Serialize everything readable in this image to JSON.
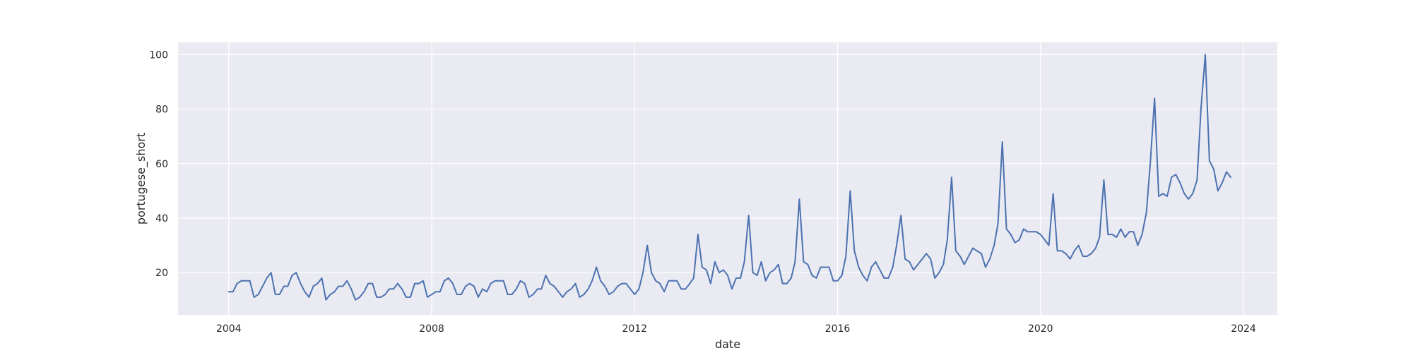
{
  "chart_data": {
    "type": "line",
    "xlabel": "date",
    "ylabel": "portugese_short",
    "grid": true,
    "colors": {
      "line": "#4c72b0",
      "plot_background": "#eaeaf2",
      "grid": "#ffffff"
    },
    "xlim": [
      "2003-01-01",
      "2024-09-01"
    ],
    "ylim": [
      4.5,
      104.5
    ],
    "x_ticks": [
      {
        "value": "2004-01-01",
        "label": "2004"
      },
      {
        "value": "2008-01-01",
        "label": "2008"
      },
      {
        "value": "2012-01-01",
        "label": "2012"
      },
      {
        "value": "2016-01-01",
        "label": "2016"
      },
      {
        "value": "2020-01-01",
        "label": "2020"
      },
      {
        "value": "2024-01-01",
        "label": "2024"
      }
    ],
    "y_ticks": [
      20,
      40,
      60,
      80,
      100
    ],
    "series": [
      {
        "x": [
          "2004-01",
          "2004-02",
          "2004-03",
          "2004-04",
          "2004-05",
          "2004-06",
          "2004-07",
          "2004-08",
          "2004-09",
          "2004-10",
          "2004-11",
          "2004-12",
          "2005-01",
          "2005-02",
          "2005-03",
          "2005-04",
          "2005-05",
          "2005-06",
          "2005-07",
          "2005-08",
          "2005-09",
          "2005-10",
          "2005-11",
          "2005-12",
          "2006-01",
          "2006-02",
          "2006-03",
          "2006-04",
          "2006-05",
          "2006-06",
          "2006-07",
          "2006-08",
          "2006-09",
          "2006-10",
          "2006-11",
          "2006-12",
          "2007-01",
          "2007-02",
          "2007-03",
          "2007-04",
          "2007-05",
          "2007-06",
          "2007-07",
          "2007-08",
          "2007-09",
          "2007-10",
          "2007-11",
          "2007-12",
          "2008-01",
          "2008-02",
          "2008-03",
          "2008-04",
          "2008-05",
          "2008-06",
          "2008-07",
          "2008-08",
          "2008-09",
          "2008-10",
          "2008-11",
          "2008-12",
          "2009-01",
          "2009-02",
          "2009-03",
          "2009-04",
          "2009-05",
          "2009-06",
          "2009-07",
          "2009-08",
          "2009-09",
          "2009-10",
          "2009-11",
          "2009-12",
          "2010-01",
          "2010-02",
          "2010-03",
          "2010-04",
          "2010-05",
          "2010-06",
          "2010-07",
          "2010-08",
          "2010-09",
          "2010-10",
          "2010-11",
          "2010-12",
          "2011-01",
          "2011-02",
          "2011-03",
          "2011-04",
          "2011-05",
          "2011-06",
          "2011-07",
          "2011-08",
          "2011-09",
          "2011-10",
          "2011-11",
          "2011-12",
          "2012-01",
          "2012-02",
          "2012-03",
          "2012-04",
          "2012-05",
          "2012-06",
          "2012-07",
          "2012-08",
          "2012-09",
          "2012-10",
          "2012-11",
          "2012-12",
          "2013-01",
          "2013-02",
          "2013-03",
          "2013-04",
          "2013-05",
          "2013-06",
          "2013-07",
          "2013-08",
          "2013-09",
          "2013-10",
          "2013-11",
          "2013-12",
          "2014-01",
          "2014-02",
          "2014-03",
          "2014-04",
          "2014-05",
          "2014-06",
          "2014-07",
          "2014-08",
          "2014-09",
          "2014-10",
          "2014-11",
          "2014-12",
          "2015-01",
          "2015-02",
          "2015-03",
          "2015-04",
          "2015-05",
          "2015-06",
          "2015-07",
          "2015-08",
          "2015-09",
          "2015-10",
          "2015-11",
          "2015-12",
          "2016-01",
          "2016-02",
          "2016-03",
          "2016-04",
          "2016-05",
          "2016-06",
          "2016-07",
          "2016-08",
          "2016-09",
          "2016-10",
          "2016-11",
          "2016-12",
          "2017-01",
          "2017-02",
          "2017-03",
          "2017-04",
          "2017-05",
          "2017-06",
          "2017-07",
          "2017-08",
          "2017-09",
          "2017-10",
          "2017-11",
          "2017-12",
          "2018-01",
          "2018-02",
          "2018-03",
          "2018-04",
          "2018-05",
          "2018-06",
          "2018-07",
          "2018-08",
          "2018-09",
          "2018-10",
          "2018-11",
          "2018-12",
          "2019-01",
          "2019-02",
          "2019-03",
          "2019-04",
          "2019-05",
          "2019-06",
          "2019-07",
          "2019-08",
          "2019-09",
          "2019-10",
          "2019-11",
          "2019-12",
          "2020-01",
          "2020-02",
          "2020-03",
          "2020-04",
          "2020-05",
          "2020-06",
          "2020-07",
          "2020-08",
          "2020-09",
          "2020-10",
          "2020-11",
          "2020-12",
          "2021-01",
          "2021-02",
          "2021-03",
          "2021-04",
          "2021-05",
          "2021-06",
          "2021-07",
          "2021-08",
          "2021-09",
          "2021-10",
          "2021-11",
          "2021-12",
          "2022-01",
          "2022-02",
          "2022-03",
          "2022-04",
          "2022-05",
          "2022-06",
          "2022-07",
          "2022-08",
          "2022-09",
          "2022-10",
          "2022-11",
          "2022-12",
          "2023-01",
          "2023-02",
          "2023-03",
          "2023-04",
          "2023-05",
          "2023-06",
          "2023-07",
          "2023-08",
          "2023-09",
          "2023-10"
        ],
        "y": [
          13,
          13,
          16,
          17,
          17,
          17,
          11,
          12,
          15,
          18,
          20,
          12,
          12,
          15,
          15,
          19,
          20,
          16,
          13,
          11,
          15,
          16,
          18,
          10,
          12,
          13,
          15,
          15,
          17,
          14,
          10,
          11,
          13,
          16,
          16,
          11,
          11,
          12,
          14,
          14,
          16,
          14,
          11,
          11,
          16,
          16,
          17,
          11,
          12,
          13,
          13,
          17,
          18,
          16,
          12,
          12,
          15,
          16,
          15,
          11,
          14,
          13,
          16,
          17,
          17,
          17,
          12,
          12,
          14,
          17,
          16,
          11,
          12,
          14,
          14,
          19,
          16,
          15,
          13,
          11,
          13,
          14,
          16,
          11,
          12,
          14,
          17,
          22,
          17,
          15,
          12,
          13,
          15,
          16,
          16,
          14,
          12,
          14,
          20,
          30,
          20,
          17,
          16,
          13,
          17,
          17,
          17,
          14,
          14,
          16,
          18,
          34,
          22,
          21,
          16,
          24,
          20,
          21,
          19,
          14,
          18,
          18,
          24,
          41,
          20,
          19,
          24,
          17,
          20,
          21,
          23,
          16,
          16,
          18,
          24,
          47,
          24,
          23,
          19,
          18,
          22,
          22,
          22,
          17,
          17,
          19,
          26,
          50,
          28,
          22,
          19,
          17,
          22,
          24,
          21,
          18,
          18,
          22,
          30,
          41,
          25,
          24,
          21,
          23,
          25,
          27,
          25,
          18,
          20,
          23,
          32,
          55,
          28,
          26,
          23,
          26,
          29,
          28,
          27,
          22,
          25,
          30,
          38,
          68,
          36,
          34,
          31,
          32,
          36,
          35,
          35,
          35,
          34,
          32,
          30,
          49,
          28,
          28,
          27,
          25,
          28,
          30,
          26,
          26,
          27,
          29,
          33,
          54,
          34,
          34,
          33,
          36,
          33,
          35,
          35,
          30,
          34,
          42,
          60,
          84,
          48,
          49,
          48,
          55,
          56,
          53,
          49,
          47,
          49,
          54,
          80,
          100,
          61,
          58,
          50,
          53,
          57,
          55
        ]
      }
    ]
  }
}
